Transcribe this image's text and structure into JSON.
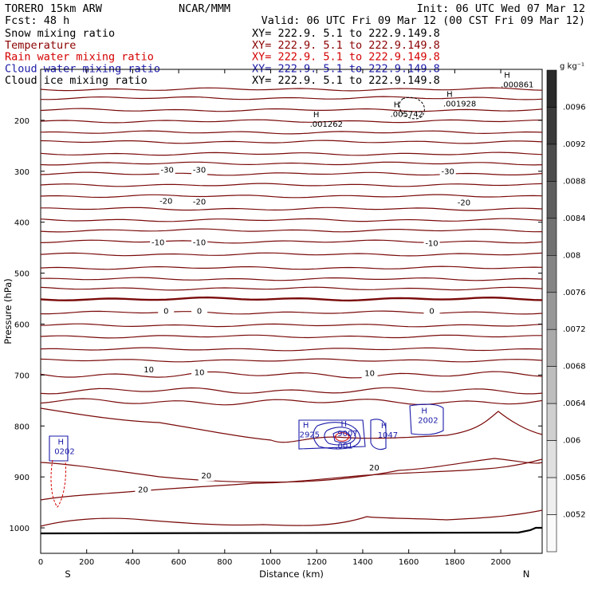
{
  "header": {
    "model": "TORERO  15km ARW",
    "center": "NCAR/MMM",
    "init": "Init: 06 UTC Wed 07 Mar 12",
    "fcst": "Fcst:   48 h",
    "valid": "Valid: 06 UTC Fri 09 Mar 12 (00 CST Fri 09 Mar 12)"
  },
  "fields": [
    {
      "name": "Snow mixing ratio",
      "xy": "XY= 222.9.  5.1 to 222.9.149.8",
      "color": "#000000"
    },
    {
      "name": "Temperature",
      "xy": "XY= 222.9.  5.1 to 222.9.149.8",
      "color": "#8b0000"
    },
    {
      "name": "Rain water mixing ratio",
      "xy": "XY= 222.9.  5.1 to 222.9.149.8",
      "color": "#d40000"
    },
    {
      "name": "Cloud water mixing ratio",
      "xy": "XY= 222.9.  5.1 to 222.9.149.8",
      "color": "#1a1aa8"
    },
    {
      "name": "Cloud ice mixing ratio",
      "xy": "XY= 222.9.  5.1 to 222.9.149.8",
      "color": "#000000"
    }
  ],
  "chart_data": {
    "type": "contour-cross-section",
    "xlabel": "Distance (km)",
    "ylabel": "Pressure (hPa)",
    "xlim": [
      0,
      2180
    ],
    "ylim": [
      1050,
      100
    ],
    "x_ticks": [
      0,
      200,
      400,
      600,
      800,
      1000,
      1200,
      1400,
      1600,
      1800,
      2000
    ],
    "y_ticks": [
      200,
      300,
      400,
      500,
      600,
      700,
      800,
      900,
      1000
    ],
    "x_end_labels": {
      "left": "S",
      "right": "N"
    },
    "temperature_contours_interval_C": 5,
    "temperature_labels": [
      {
        "x": 550,
        "p": 303,
        "text": "-30"
      },
      {
        "x": 690,
        "p": 303,
        "text": "-30"
      },
      {
        "x": 1770,
        "p": 306,
        "text": "-30"
      },
      {
        "x": 545,
        "p": 364,
        "text": "-20"
      },
      {
        "x": 690,
        "p": 365,
        "text": "-20"
      },
      {
        "x": 1840,
        "p": 367,
        "text": "-20"
      },
      {
        "x": 510,
        "p": 445,
        "text": "-10"
      },
      {
        "x": 690,
        "p": 445,
        "text": "-10"
      },
      {
        "x": 1700,
        "p": 447,
        "text": "-10"
      },
      {
        "x": 545,
        "p": 580,
        "text": "0"
      },
      {
        "x": 690,
        "p": 580,
        "text": "0"
      },
      {
        "x": 1700,
        "p": 580,
        "text": "0"
      },
      {
        "x": 470,
        "p": 695,
        "text": "10"
      },
      {
        "x": 690,
        "p": 700,
        "text": "10"
      },
      {
        "x": 1430,
        "p": 702,
        "text": "10"
      },
      {
        "x": 445,
        "p": 930,
        "text": "20"
      },
      {
        "x": 720,
        "p": 903,
        "text": "20"
      },
      {
        "x": 1450,
        "p": 887,
        "text": "20"
      }
    ],
    "maxima_labels": [
      {
        "field": "snow",
        "x": 2000,
        "p": 135,
        "h": "H",
        "value": ".000861"
      },
      {
        "field": "snow",
        "x": 1750,
        "p": 173,
        "h": "H",
        "value": ".001928"
      },
      {
        "field": "snow",
        "x": 1520,
        "p": 193,
        "h": "H",
        "value": ".005742"
      },
      {
        "field": "snow",
        "x": 1170,
        "p": 213,
        "h": "H",
        "value": ".001262"
      },
      {
        "field": "cloud_water",
        "x": 1125,
        "p": 822,
        "h": "H",
        "value": "2925"
      },
      {
        "field": "cloud_water",
        "x": 1290,
        "p": 820,
        "h": "H",
        "value": "9007"
      },
      {
        "field": "cloud_water",
        "x": 1280,
        "p": 844,
        "h": "",
        "value": ".001"
      },
      {
        "field": "cloud_water",
        "x": 1465,
        "p": 823,
        "h": "H",
        "value": "1047"
      },
      {
        "field": "cloud_water",
        "x": 1640,
        "p": 794,
        "h": "H",
        "value": "2002"
      },
      {
        "field": "cloud_water",
        "x": 60,
        "p": 855,
        "h": "H",
        "value": "0202"
      }
    ],
    "colorbar": {
      "units": "g kg⁻¹",
      "levels": [
        ".0096",
        ".0092",
        ".0088",
        ".0084",
        ".008",
        ".0076",
        ".0072",
        ".0068",
        ".0064",
        ".006",
        ".0056",
        ".0052"
      ],
      "colors": [
        "#2a2a2a",
        "#3a3a3a",
        "#4c4c4c",
        "#5e5e5e",
        "#717171",
        "#848484",
        "#979797",
        "#aaaaaa",
        "#bdbdbd",
        "#cfcfcf",
        "#e0e0e0",
        "#eeeeee",
        "#fafafa"
      ]
    }
  }
}
